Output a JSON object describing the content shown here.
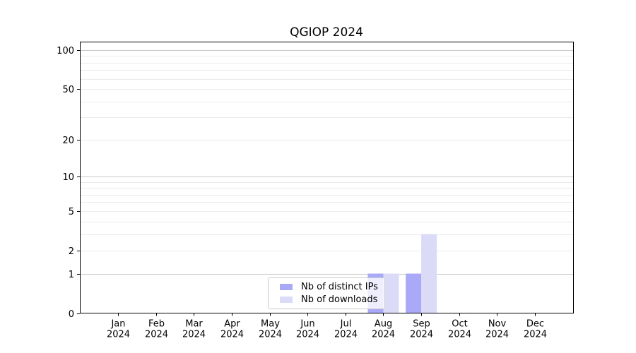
{
  "chart_data": {
    "type": "bar",
    "title": "QGIOP 2024",
    "categories": [
      "Jan 2024",
      "Feb 2024",
      "Mar 2024",
      "Apr 2024",
      "May 2024",
      "Jun 2024",
      "Jul 2024",
      "Aug 2024",
      "Sep 2024",
      "Oct 2024",
      "Nov 2024",
      "Dec 2024"
    ],
    "series": [
      {
        "name": "Nb of distinct IPs",
        "color": "#a9a9f7",
        "values": [
          0,
          0,
          0,
          0,
          0,
          0,
          0,
          1,
          1,
          0,
          0,
          0
        ]
      },
      {
        "name": "Nb of downloads",
        "color": "#dbdbf8",
        "values": [
          0,
          0,
          0,
          0,
          0,
          0,
          0,
          1,
          3,
          0,
          0,
          0
        ]
      }
    ],
    "y_axis": {
      "scale": "log1p",
      "tick_values": [
        0,
        1,
        2,
        5,
        10,
        20,
        50,
        100
      ],
      "top_value": 116,
      "ylim": [
        0,
        116
      ]
    },
    "grid": {
      "decade_lines": [
        1,
        10,
        100
      ],
      "sub_lines": [
        2,
        3,
        4,
        5,
        6,
        7,
        8,
        9,
        20,
        30,
        40,
        50,
        60,
        70,
        80,
        90
      ],
      "decade_color": "#c9c9c9",
      "sub_color": "#ebebeb"
    },
    "legend": {
      "position": "bottom-center",
      "frame_border_color": "#cccccc"
    },
    "axis_color": "#000000",
    "background_color": "#ffffff"
  }
}
